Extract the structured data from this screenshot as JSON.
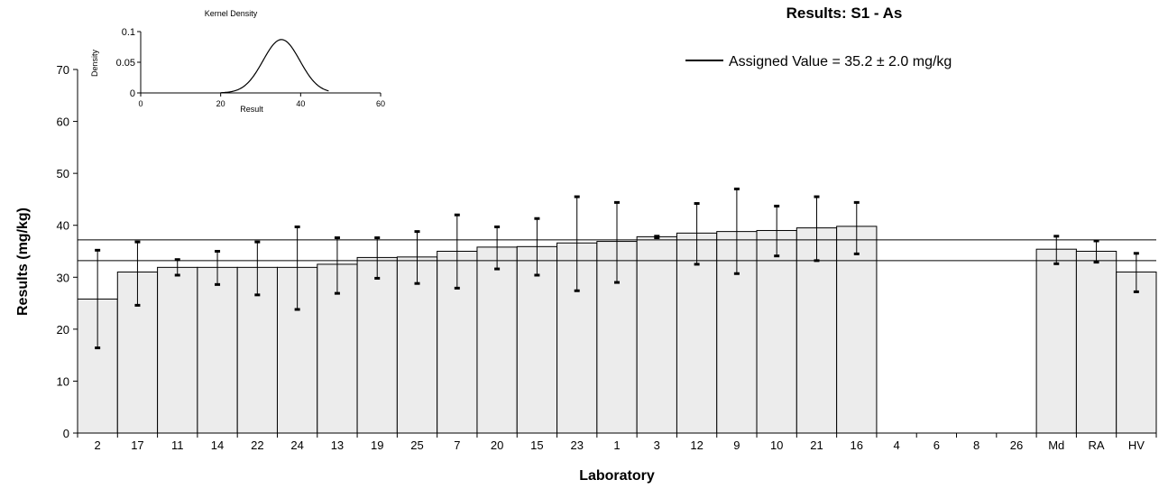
{
  "chart_data": {
    "type": "bar",
    "title": "Results: S1 - As",
    "xlabel": "Laboratory",
    "ylabel": "Results (mg/kg)",
    "ylim": [
      0,
      70
    ],
    "yticks": [
      0,
      10,
      20,
      30,
      40,
      50,
      60,
      70
    ],
    "grid": false,
    "legend": {
      "position": "top-right",
      "entry": "Assigned Value  = 35.2 ± 2.0 mg/kg"
    },
    "assigned_value": 35.2,
    "assigned_uncertainty": 2.0,
    "categories": [
      "2",
      "17",
      "11",
      "14",
      "22",
      "24",
      "13",
      "19",
      "25",
      "7",
      "20",
      "15",
      "23",
      "1",
      "3",
      "12",
      "9",
      "10",
      "21",
      "16",
      "4",
      "6",
      "8",
      "26",
      "Md",
      "RA",
      "HV"
    ],
    "values": [
      25.8,
      31.0,
      31.9,
      31.9,
      31.9,
      31.9,
      32.5,
      33.8,
      33.9,
      35.0,
      35.8,
      35.9,
      36.6,
      36.9,
      37.8,
      38.5,
      38.8,
      39.0,
      39.5,
      39.8,
      null,
      null,
      null,
      null,
      35.4,
      35.0,
      31.0
    ],
    "error_low": [
      16.4,
      24.6,
      30.4,
      28.6,
      26.6,
      23.8,
      26.9,
      29.8,
      28.8,
      27.9,
      31.6,
      30.4,
      27.4,
      29.0,
      37.6,
      32.5,
      30.7,
      34.1,
      33.2,
      34.5,
      null,
      null,
      null,
      null,
      32.6,
      32.9,
      27.2
    ],
    "error_high": [
      35.2,
      36.8,
      33.4,
      35.0,
      36.8,
      39.7,
      37.6,
      37.6,
      38.8,
      42.0,
      39.7,
      41.3,
      45.5,
      44.4,
      37.9,
      44.2,
      47.0,
      43.7,
      45.5,
      44.4,
      null,
      null,
      null,
      null,
      37.9,
      37.0,
      34.6
    ],
    "inset": {
      "type": "line",
      "title": "Kernel Density",
      "xlabel": "Result",
      "ylabel": "Density",
      "xlim": [
        0,
        60
      ],
      "ylim": [
        0,
        0.1
      ],
      "xticks": [
        "0",
        "20",
        "40",
        "60"
      ],
      "yticks": [
        "0",
        "0.05",
        "0.1"
      ],
      "mean": 35.2,
      "sd": 4.6
    }
  }
}
